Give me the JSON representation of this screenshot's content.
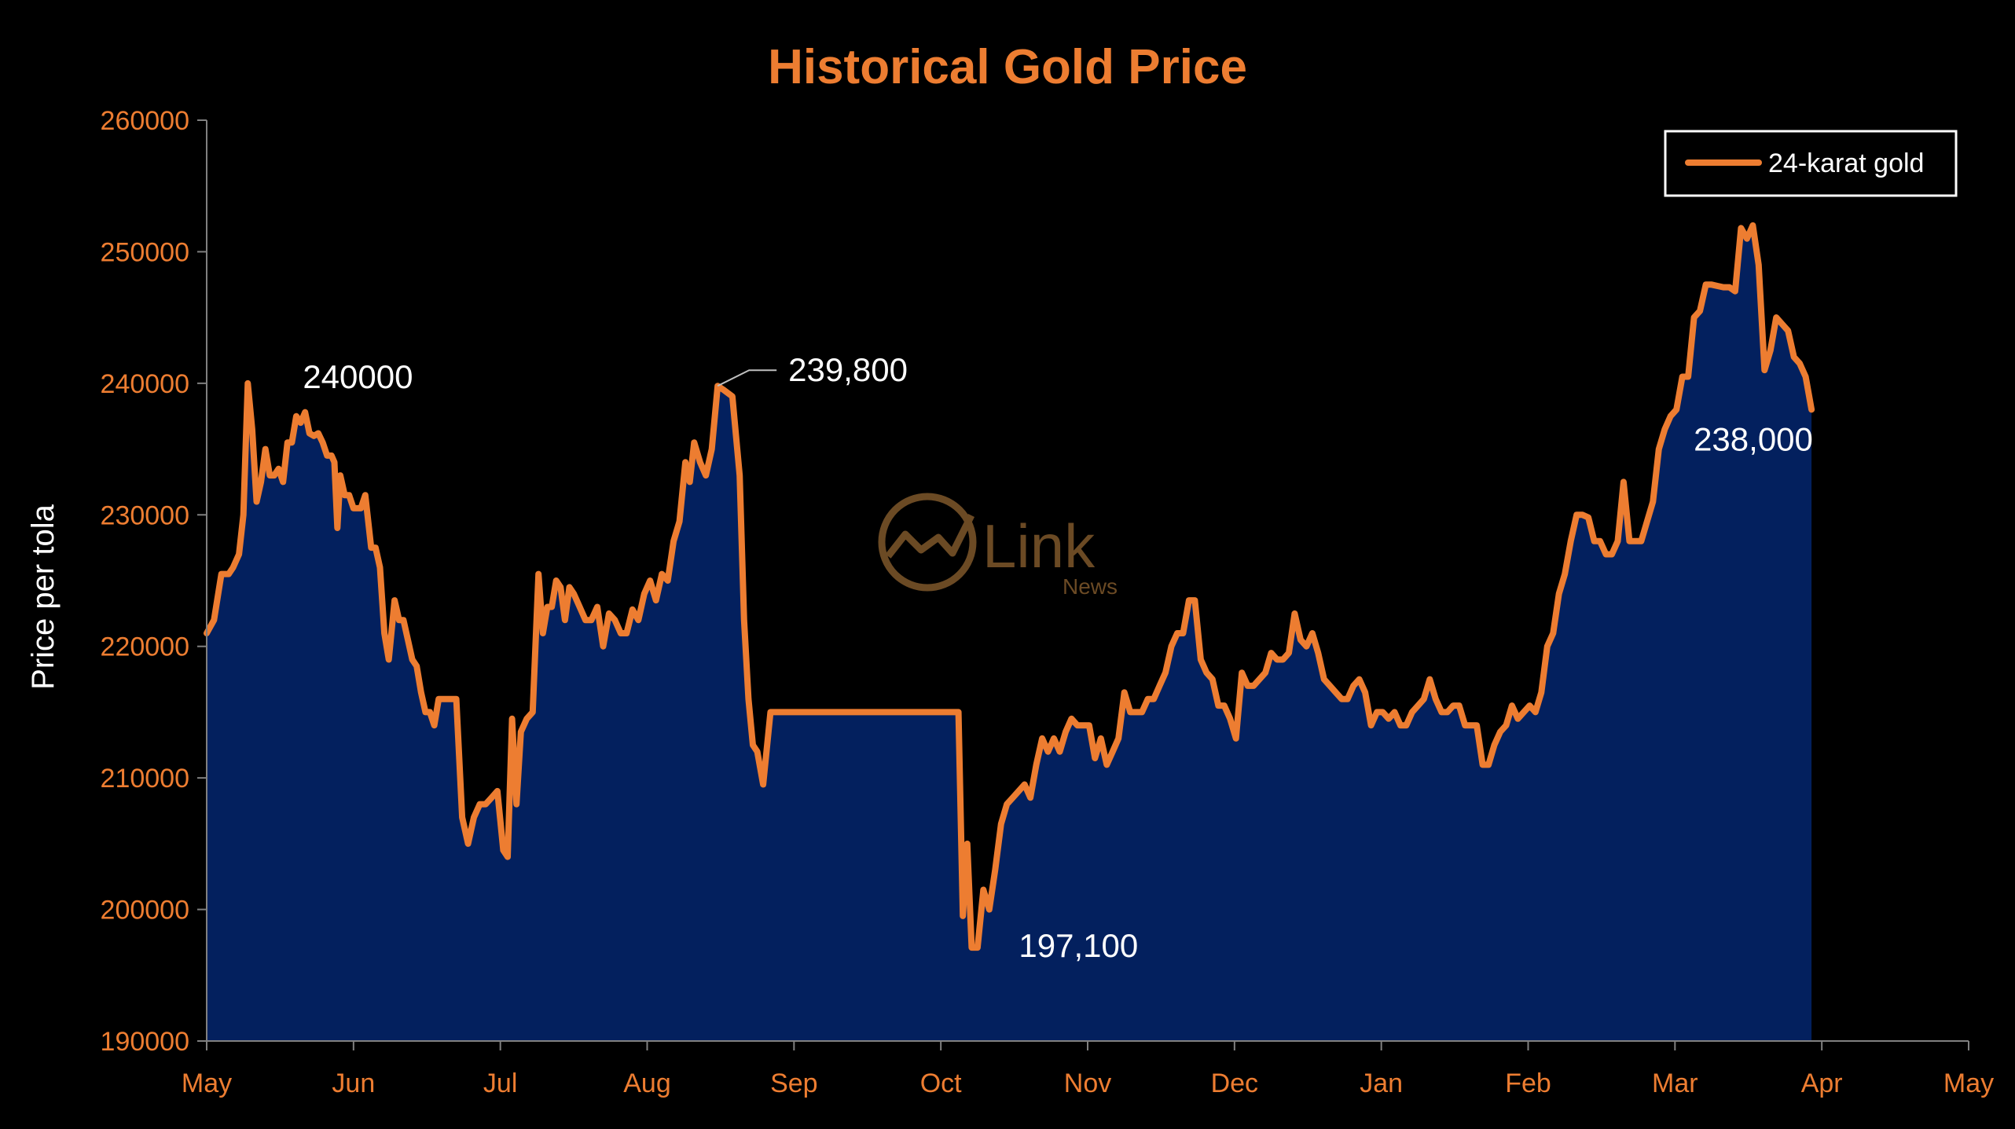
{
  "chart_data": {
    "type": "area",
    "title": "Historical Gold Price",
    "ylabel": "Price per tola",
    "xlabel": "",
    "ylim": [
      190000,
      260000
    ],
    "yticks": [
      190000,
      200000,
      210000,
      220000,
      230000,
      240000,
      250000,
      260000
    ],
    "xticks": [
      "May",
      "Jun",
      "Jul",
      "Aug",
      "Sep",
      "Oct",
      "Nov",
      "Dec",
      "Jan",
      "Feb",
      "Mar",
      "Apr",
      "May"
    ],
    "xlim": [
      0,
      12
    ],
    "grid": false,
    "legend_position": "top-right",
    "series": [
      {
        "name": "24-karat gold",
        "color": "#ED7D31",
        "fill": "#03205E",
        "points": [
          [
            0.0,
            221000
          ],
          [
            0.05,
            222000
          ],
          [
            0.1,
            225500
          ],
          [
            0.15,
            225500
          ],
          [
            0.18,
            226000
          ],
          [
            0.22,
            227000
          ],
          [
            0.25,
            230000
          ],
          [
            0.28,
            240000
          ],
          [
            0.31,
            236500
          ],
          [
            0.34,
            231000
          ],
          [
            0.37,
            232500
          ],
          [
            0.4,
            235000
          ],
          [
            0.43,
            233000
          ],
          [
            0.46,
            233000
          ],
          [
            0.49,
            233500
          ],
          [
            0.52,
            232500
          ],
          [
            0.55,
            235500
          ],
          [
            0.58,
            235500
          ],
          [
            0.61,
            237500
          ],
          [
            0.64,
            237000
          ],
          [
            0.67,
            237800
          ],
          [
            0.7,
            236200
          ],
          [
            0.73,
            236000
          ],
          [
            0.76,
            236200
          ],
          [
            0.79,
            235500
          ],
          [
            0.82,
            234500
          ],
          [
            0.85,
            234500
          ],
          [
            0.87,
            234000
          ],
          [
            0.89,
            229000
          ],
          [
            0.91,
            233000
          ],
          [
            0.94,
            231500
          ],
          [
            0.97,
            231500
          ],
          [
            1.0,
            230500
          ],
          [
            1.05,
            230500
          ],
          [
            1.08,
            231500
          ],
          [
            1.12,
            227500
          ],
          [
            1.15,
            227500
          ],
          [
            1.18,
            226000
          ],
          [
            1.21,
            221000
          ],
          [
            1.24,
            219000
          ],
          [
            1.28,
            223500
          ],
          [
            1.31,
            222000
          ],
          [
            1.34,
            222000
          ],
          [
            1.37,
            220500
          ],
          [
            1.4,
            219000
          ],
          [
            1.43,
            218500
          ],
          [
            1.46,
            216500
          ],
          [
            1.49,
            215000
          ],
          [
            1.52,
            215000
          ],
          [
            1.55,
            214000
          ],
          [
            1.58,
            216000
          ],
          [
            1.62,
            216000
          ],
          [
            1.66,
            216000
          ],
          [
            1.7,
            216000
          ],
          [
            1.74,
            207000
          ],
          [
            1.78,
            205000
          ],
          [
            1.82,
            207000
          ],
          [
            1.86,
            208000
          ],
          [
            1.9,
            208000
          ],
          [
            1.94,
            208500
          ],
          [
            1.98,
            209000
          ],
          [
            2.02,
            204500
          ],
          [
            2.05,
            204000
          ],
          [
            2.08,
            214500
          ],
          [
            2.11,
            208000
          ],
          [
            2.14,
            213500
          ],
          [
            2.18,
            214500
          ],
          [
            2.22,
            215000
          ],
          [
            2.26,
            225500
          ],
          [
            2.29,
            221000
          ],
          [
            2.32,
            223000
          ],
          [
            2.35,
            223000
          ],
          [
            2.38,
            225000
          ],
          [
            2.41,
            224500
          ],
          [
            2.44,
            222000
          ],
          [
            2.47,
            224500
          ],
          [
            2.5,
            224000
          ],
          [
            2.54,
            223000
          ],
          [
            2.58,
            222000
          ],
          [
            2.62,
            222000
          ],
          [
            2.66,
            223000
          ],
          [
            2.7,
            220000
          ],
          [
            2.74,
            222500
          ],
          [
            2.78,
            222000
          ],
          [
            2.82,
            221000
          ],
          [
            2.86,
            221000
          ],
          [
            2.9,
            222800
          ],
          [
            2.94,
            222000
          ],
          [
            2.98,
            224000
          ],
          [
            3.02,
            225000
          ],
          [
            3.06,
            223500
          ],
          [
            3.1,
            225500
          ],
          [
            3.14,
            225000
          ],
          [
            3.18,
            228000
          ],
          [
            3.22,
            229500
          ],
          [
            3.26,
            234000
          ],
          [
            3.29,
            232500
          ],
          [
            3.32,
            235500
          ],
          [
            3.36,
            234000
          ],
          [
            3.4,
            233000
          ],
          [
            3.44,
            235000
          ],
          [
            3.48,
            239800
          ],
          [
            3.52,
            239500
          ],
          [
            3.58,
            239000
          ],
          [
            3.63,
            233000
          ],
          [
            3.66,
            222000
          ],
          [
            3.69,
            216000
          ],
          [
            3.72,
            212500
          ],
          [
            3.75,
            212000
          ],
          [
            3.79,
            209500
          ],
          [
            3.84,
            215000
          ],
          [
            4.0,
            215000
          ],
          [
            4.5,
            215000
          ],
          [
            5.12,
            215000
          ],
          [
            5.15,
            199500
          ],
          [
            5.18,
            205000
          ],
          [
            5.21,
            197100
          ],
          [
            5.25,
            197100
          ],
          [
            5.29,
            201500
          ],
          [
            5.33,
            200000
          ],
          [
            5.37,
            203000
          ],
          [
            5.41,
            206500
          ],
          [
            5.45,
            208000
          ],
          [
            5.49,
            208500
          ],
          [
            5.53,
            209000
          ],
          [
            5.57,
            209500
          ],
          [
            5.61,
            208500
          ],
          [
            5.65,
            211000
          ],
          [
            5.69,
            213000
          ],
          [
            5.73,
            212000
          ],
          [
            5.77,
            213000
          ],
          [
            5.81,
            212000
          ],
          [
            5.85,
            213500
          ],
          [
            5.89,
            214500
          ],
          [
            5.93,
            214000
          ],
          [
            5.97,
            214000
          ],
          [
            6.01,
            214000
          ],
          [
            6.05,
            211500
          ],
          [
            6.09,
            213000
          ],
          [
            6.13,
            211000
          ],
          [
            6.17,
            212000
          ],
          [
            6.21,
            213000
          ],
          [
            6.25,
            216500
          ],
          [
            6.29,
            215000
          ],
          [
            6.33,
            215000
          ],
          [
            6.37,
            215000
          ],
          [
            6.41,
            216000
          ],
          [
            6.45,
            216000
          ],
          [
            6.49,
            217000
          ],
          [
            6.53,
            218000
          ],
          [
            6.57,
            220000
          ],
          [
            6.61,
            221000
          ],
          [
            6.65,
            221000
          ],
          [
            6.69,
            223500
          ],
          [
            6.73,
            223500
          ],
          [
            6.77,
            219000
          ],
          [
            6.81,
            218000
          ],
          [
            6.85,
            217500
          ],
          [
            6.89,
            215500
          ],
          [
            6.93,
            215500
          ],
          [
            6.97,
            214500
          ],
          [
            7.01,
            213000
          ],
          [
            7.05,
            218000
          ],
          [
            7.09,
            217000
          ],
          [
            7.13,
            217000
          ],
          [
            7.17,
            217500
          ],
          [
            7.21,
            218000
          ],
          [
            7.25,
            219500
          ],
          [
            7.29,
            219000
          ],
          [
            7.33,
            219000
          ],
          [
            7.37,
            219500
          ],
          [
            7.41,
            222500
          ],
          [
            7.45,
            220500
          ],
          [
            7.49,
            220000
          ],
          [
            7.53,
            221000
          ],
          [
            7.57,
            219500
          ],
          [
            7.61,
            217500
          ],
          [
            7.65,
            217000
          ],
          [
            7.69,
            216500
          ],
          [
            7.73,
            216000
          ],
          [
            7.77,
            216000
          ],
          [
            7.81,
            217000
          ],
          [
            7.85,
            217500
          ],
          [
            7.89,
            216500
          ],
          [
            7.93,
            214000
          ],
          [
            7.97,
            215000
          ],
          [
            8.01,
            215000
          ],
          [
            8.05,
            214500
          ],
          [
            8.09,
            215000
          ],
          [
            8.13,
            214000
          ],
          [
            8.17,
            214000
          ],
          [
            8.21,
            215000
          ],
          [
            8.25,
            215500
          ],
          [
            8.29,
            216000
          ],
          [
            8.33,
            217500
          ],
          [
            8.37,
            216000
          ],
          [
            8.41,
            215000
          ],
          [
            8.45,
            215000
          ],
          [
            8.49,
            215500
          ],
          [
            8.53,
            215500
          ],
          [
            8.57,
            214000
          ],
          [
            8.61,
            214000
          ],
          [
            8.65,
            214000
          ],
          [
            8.69,
            211000
          ],
          [
            8.73,
            211000
          ],
          [
            8.77,
            212500
          ],
          [
            8.81,
            213500
          ],
          [
            8.85,
            214000
          ],
          [
            8.89,
            215500
          ],
          [
            8.93,
            214500
          ],
          [
            8.97,
            215000
          ],
          [
            9.01,
            215500
          ],
          [
            9.05,
            215000
          ],
          [
            9.09,
            216500
          ],
          [
            9.13,
            220000
          ],
          [
            9.17,
            221000
          ],
          [
            9.21,
            224000
          ],
          [
            9.25,
            225500
          ],
          [
            9.29,
            228000
          ],
          [
            9.33,
            230000
          ],
          [
            9.37,
            230000
          ],
          [
            9.41,
            229800
          ],
          [
            9.45,
            228000
          ],
          [
            9.49,
            228000
          ],
          [
            9.53,
            227000
          ],
          [
            9.57,
            227000
          ],
          [
            9.61,
            228000
          ],
          [
            9.65,
            232500
          ],
          [
            9.69,
            228000
          ],
          [
            9.73,
            228000
          ],
          [
            9.77,
            228000
          ],
          [
            9.81,
            229500
          ],
          [
            9.85,
            231000
          ],
          [
            9.89,
            235000
          ],
          [
            9.93,
            236500
          ],
          [
            9.97,
            237500
          ],
          [
            10.01,
            238000
          ],
          [
            10.05,
            240500
          ],
          [
            10.09,
            240500
          ],
          [
            10.13,
            245000
          ],
          [
            10.17,
            245500
          ],
          [
            10.21,
            247500
          ],
          [
            10.25,
            247500
          ],
          [
            10.29,
            247400
          ],
          [
            10.33,
            247300
          ],
          [
            10.37,
            247300
          ],
          [
            10.41,
            247000
          ],
          [
            10.45,
            251800
          ],
          [
            10.49,
            251000
          ],
          [
            10.53,
            252000
          ],
          [
            10.57,
            249000
          ],
          [
            10.61,
            241000
          ],
          [
            10.65,
            242500
          ],
          [
            10.69,
            245000
          ],
          [
            10.73,
            244500
          ],
          [
            10.77,
            244000
          ],
          [
            10.81,
            242000
          ],
          [
            10.85,
            241500
          ],
          [
            10.89,
            240500
          ],
          [
            10.93,
            238000
          ]
        ]
      }
    ],
    "annotations": [
      {
        "text": "240000",
        "x": 0.28,
        "y": 240000
      },
      {
        "text": "239,800",
        "x": 3.48,
        "y": 239800
      },
      {
        "text": "197,100",
        "x": 5.21,
        "y": 197100
      },
      {
        "text": "238,000",
        "x": 10.93,
        "y": 238000
      }
    ]
  },
  "watermark": {
    "text": "Link",
    "sub": "News",
    "icon": "link-news-logo-icon",
    "color": "#6b4a24"
  }
}
